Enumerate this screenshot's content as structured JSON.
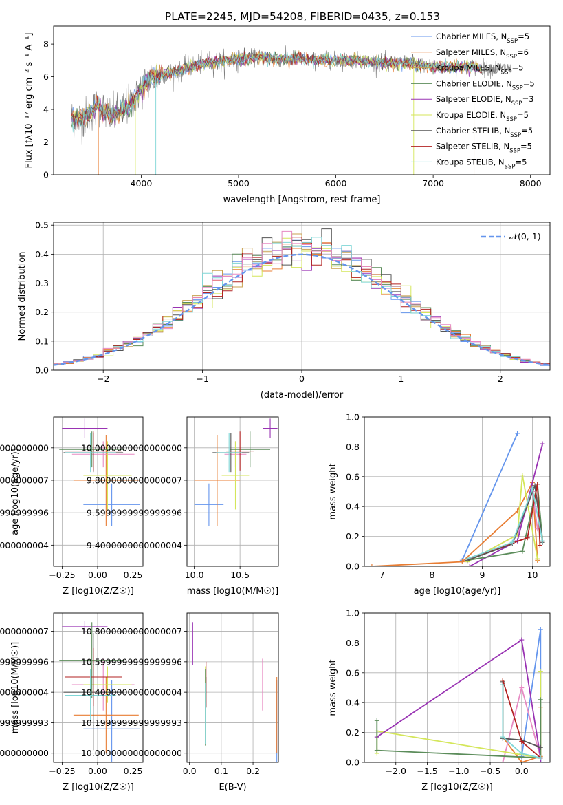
{
  "figure": {
    "title": "PLATE=2245, MJD=54208, FIBERID=0435, z=0.153"
  },
  "colors": {
    "frame": "#000000",
    "grid": "#b0b0b0",
    "observed": "#808080",
    "normal_curve": "#6495ED"
  },
  "chart_data": [
    {
      "id": "spectrum",
      "type": "line",
      "title": "PLATE=2245, MJD=54208, FIBERID=0435, z=0.153",
      "xlabel": "wavelength [Angstrom, rest frame]",
      "ylabel": "Flux [fλ10⁻¹⁷ erg cm⁻² s⁻¹ A⁻¹]",
      "xlim": [
        3100,
        8200
      ],
      "ylim": [
        0,
        9.1
      ],
      "xticks": [
        4000,
        5000,
        6000,
        7000,
        8000
      ],
      "yticks": [
        0,
        2,
        4,
        6,
        8
      ],
      "grid": false,
      "legend_position": "top-right",
      "observed_anchors": {
        "x": [
          3280,
          3400,
          3550,
          3700,
          3800,
          3900,
          4000,
          4100,
          4200,
          4300,
          4400,
          4500,
          4600,
          4700,
          4800,
          4900,
          5000,
          5200,
          5400,
          5600,
          5800,
          6000,
          6200,
          6400,
          6600,
          6800,
          7000,
          7200,
          7400,
          7600,
          7800
        ],
        "y": [
          3.5,
          3.4,
          4.2,
          3.6,
          3.9,
          4.4,
          5.3,
          5.9,
          6.1,
          6.2,
          6.4,
          6.6,
          6.7,
          6.9,
          6.9,
          7.0,
          7.1,
          7.2,
          7.1,
          7.1,
          7.0,
          7.0,
          7.0,
          6.9,
          6.8,
          6.8,
          6.6,
          6.6,
          6.6,
          6.5,
          6.5
        ]
      },
      "series": [
        {
          "name": "Chabrier MILES, N_SSP=5",
          "legend": "Chabrier MILES, N",
          "sub": "SSP",
          "suffix": "=5",
          "color": "#6495ED"
        },
        {
          "name": "Salpeter MILES, N_SSP=6",
          "legend": "Salpeter MILES, N",
          "sub": "SSP",
          "suffix": "=6",
          "color": "#E87D33"
        },
        {
          "name": "Kroupa MILES, N_SSP=5",
          "legend": "Kroupa MILES, N",
          "sub": "SSP",
          "suffix": "=5",
          "color": "#C8A050"
        },
        {
          "name": "Chabrier ELODIE, N_SSP=5",
          "legend": "Chabrier ELODIE, N",
          "sub": "SSP",
          "suffix": "=5",
          "color": "#5B8C5A"
        },
        {
          "name": "Salpeter ELODIE, N_SSP=3",
          "legend": "Salpeter ELODIE, N",
          "sub": "SSP",
          "suffix": "=3",
          "color": "#9933B3"
        },
        {
          "name": "Kroupa ELODIE, N_SSP=5",
          "legend": "Kroupa ELODIE, N",
          "sub": "SSP",
          "suffix": "=5",
          "color": "#D4E65A"
        },
        {
          "name": "Chabrier STELIB, N_SSP=5",
          "legend": "Chabrier STELIB, N",
          "sub": "SSP",
          "suffix": "=5",
          "color": "#555555"
        },
        {
          "name": "Salpeter STELIB, N_SSP=5",
          "legend": "Salpeter STELIB, N",
          "sub": "SSP",
          "suffix": "=5",
          "color": "#B22222"
        },
        {
          "name": "Kroupa STELIB, N_SSP=5",
          "legend": "Kroupa STELIB, N",
          "sub": "SSP",
          "suffix": "=5",
          "color": "#7FD6D6"
        }
      ]
    },
    {
      "id": "residuals",
      "type": "histogram",
      "xlabel": "(data-model)/error",
      "ylabel": "Normed distribution",
      "xlim": [
        -2.5,
        2.5
      ],
      "ylim": [
        0,
        0.51
      ],
      "xticks": [
        -2,
        -1,
        0,
        1,
        2
      ],
      "yticks": [
        0.0,
        0.1,
        0.2,
        0.3,
        0.4,
        0.5
      ],
      "grid": true,
      "legend": "𝒩(0, 1)",
      "legend_position": "top-right",
      "bin_width": 0.1
    },
    {
      "id": "z_age",
      "type": "errorbar",
      "xlabel": "Z [log10(Z/Z☉)]",
      "ylabel": "age  [log10(age/yr)]",
      "xlim": [
        -0.31,
        0.32
      ],
      "ylim": [
        9.27,
        10.19
      ],
      "xticks": [
        -0.25,
        0.0,
        0.25
      ],
      "yticks": [
        9.4,
        9.6,
        9.8,
        10.0
      ],
      "grid": true,
      "points": [
        {
          "x": 0.1,
          "xerr": 0.2,
          "y": 9.65,
          "yerr": 0.13,
          "color": "#6495ED"
        },
        {
          "x": 0.06,
          "xerr": 0.23,
          "y": 9.8,
          "yerr": 0.28,
          "color": "#E87D33"
        },
        {
          "x": 0.04,
          "xerr": 0.22,
          "y": 9.96,
          "yerr": 0.08,
          "color": "#E78AC3"
        },
        {
          "x": 0.07,
          "xerr": 0.17,
          "y": 9.83,
          "yerr": 0.21,
          "color": "#D4E65A"
        },
        {
          "x": -0.09,
          "xerr": 0.16,
          "y": 10.12,
          "yerr": 0.06,
          "color": "#9933B3"
        },
        {
          "x": -0.04,
          "xerr": 0.23,
          "y": 9.99,
          "yerr": 0.11,
          "color": "#5B8C5A"
        },
        {
          "x": -0.03,
          "xerr": 0.21,
          "y": 9.97,
          "yerr": 0.12,
          "color": "#555555"
        },
        {
          "x": -0.03,
          "xerr": 0.2,
          "y": 9.98,
          "yerr": 0.12,
          "color": "#B22222"
        },
        {
          "x": -0.05,
          "xerr": 0.18,
          "y": 9.97,
          "yerr": 0.12,
          "color": "#7FD6D6"
        }
      ]
    },
    {
      "id": "mass_age",
      "type": "errorbar",
      "xlabel": "mass [log10(M/M☉)]",
      "ylabel": "",
      "xlim": [
        9.92,
        10.92
      ],
      "ylim": [
        9.27,
        10.19
      ],
      "xticks": [
        10.0,
        10.5
      ],
      "yticks": [
        9.4,
        9.6,
        9.8,
        10.0
      ],
      "grid": true,
      "points": [
        {
          "x": 10.16,
          "xerr": 0.16,
          "y": 9.65,
          "yerr": 0.13,
          "color": "#6495ED"
        },
        {
          "x": 10.25,
          "xerr": 0.25,
          "y": 9.8,
          "yerr": 0.28,
          "color": "#E87D33"
        },
        {
          "x": 10.45,
          "xerr": 0.12,
          "y": 9.96,
          "yerr": 0.08,
          "color": "#E78AC3"
        },
        {
          "x": 10.45,
          "xerr": 0.15,
          "y": 9.83,
          "yerr": 0.21,
          "color": "#D4E65A"
        },
        {
          "x": 10.83,
          "xerr": 0.08,
          "y": 10.12,
          "yerr": 0.06,
          "color": "#9933B3"
        },
        {
          "x": 10.61,
          "xerr": 0.22,
          "y": 9.99,
          "yerr": 0.11,
          "color": "#5B8C5A"
        },
        {
          "x": 10.4,
          "xerr": 0.2,
          "y": 9.97,
          "yerr": 0.12,
          "color": "#555555"
        },
        {
          "x": 10.5,
          "xerr": 0.15,
          "y": 9.98,
          "yerr": 0.12,
          "color": "#B22222"
        },
        {
          "x": 10.38,
          "xerr": 0.14,
          "y": 9.97,
          "yerr": 0.12,
          "color": "#7FD6D6"
        }
      ]
    },
    {
      "id": "weights_age",
      "type": "line",
      "xlabel": "age  [log10(age/yr)]",
      "ylabel": "mass weight",
      "xlim": [
        6.65,
        10.35
      ],
      "ylim": [
        0,
        1
      ],
      "xticks": [
        7,
        8,
        9,
        10
      ],
      "yticks": [
        0.0,
        0.2,
        0.4,
        0.6,
        0.8,
        1.0
      ],
      "grid": true,
      "series": [
        {
          "color": "#6495ED",
          "x": [
            8.6,
            9.7
          ],
          "y": [
            0.04,
            0.89
          ]
        },
        {
          "color": "#E87D33",
          "x": [
            6.8,
            8.6,
            9.7,
            10.0,
            10.1
          ],
          "y": [
            0.0,
            0.03,
            0.37,
            0.56,
            0.04
          ]
        },
        {
          "color": "#E78AC3",
          "x": [
            8.7,
            9.7,
            10.0,
            10.1
          ],
          "y": [
            0.03,
            0.21,
            0.5,
            0.25
          ]
        },
        {
          "color": "#D4E65A",
          "x": [
            8.7,
            9.7,
            9.8,
            10.1
          ],
          "y": [
            0.03,
            0.21,
            0.61,
            0.05
          ]
        },
        {
          "color": "#9933B3",
          "x": [
            8.75,
            9.7,
            10.2
          ],
          "y": [
            0.0,
            0.17,
            0.82
          ]
        },
        {
          "color": "#5B8C5A",
          "x": [
            8.7,
            9.8,
            10.1,
            10.2
          ],
          "y": [
            0.04,
            0.1,
            0.55,
            0.17
          ]
        },
        {
          "color": "#555555",
          "x": [
            8.7,
            9.6,
            10.05,
            10.2
          ],
          "y": [
            0.04,
            0.15,
            0.54,
            0.16
          ]
        },
        {
          "color": "#B22222",
          "x": [
            8.7,
            9.9,
            10.1,
            10.15
          ],
          "y": [
            0.05,
            0.19,
            0.55,
            0.14
          ]
        },
        {
          "color": "#7FD6D6",
          "x": [
            8.7,
            9.6,
            10.0,
            10.2
          ],
          "y": [
            0.05,
            0.16,
            0.52,
            0.17
          ]
        }
      ]
    },
    {
      "id": "z_mass",
      "type": "errorbar",
      "xlabel": "Z [log10(Z/Z☉)]",
      "ylabel": "mass [log10(M/M☉)]",
      "xlim": [
        -0.31,
        0.32
      ],
      "ylim": [
        9.94,
        10.92
      ],
      "xticks": [
        -0.25,
        0.0,
        0.25
      ],
      "yticks": [
        10.0,
        10.2,
        10.4,
        10.6,
        10.8
      ],
      "grid": true,
      "points": [
        {
          "x": 0.1,
          "xerr": 0.2,
          "y": 10.16,
          "yerr": 0.32,
          "color": "#6495ED"
        },
        {
          "x": 0.06,
          "xerr": 0.23,
          "y": 10.25,
          "yerr": 0.25,
          "color": "#E87D33"
        },
        {
          "x": 0.04,
          "xerr": 0.22,
          "y": 10.45,
          "yerr": 0.17,
          "color": "#E78AC3"
        },
        {
          "x": 0.07,
          "xerr": 0.17,
          "y": 10.45,
          "yerr": 0.12,
          "color": "#D4E65A"
        },
        {
          "x": -0.09,
          "xerr": 0.16,
          "y": 10.83,
          "yerr": 0.04,
          "color": "#9933B3"
        },
        {
          "x": -0.04,
          "xerr": 0.23,
          "y": 10.61,
          "yerr": 0.25,
          "color": "#5B8C5A"
        },
        {
          "x": -0.03,
          "xerr": 0.21,
          "y": 10.4,
          "yerr": 0.38,
          "color": "#555555"
        },
        {
          "x": -0.03,
          "xerr": 0.2,
          "y": 10.5,
          "yerr": 0.19,
          "color": "#B22222"
        },
        {
          "x": -0.05,
          "xerr": 0.18,
          "y": 10.38,
          "yerr": 0.17,
          "color": "#7FD6D6"
        }
      ]
    },
    {
      "id": "ebv_mass",
      "type": "errorbar",
      "xlabel": "E(B-V)",
      "ylabel": "",
      "xlim": [
        -0.008,
        0.28
      ],
      "ylim": [
        9.94,
        10.92
      ],
      "xticks": [
        0.0,
        0.1,
        0.2
      ],
      "yticks": [
        10.0,
        10.2,
        10.4,
        10.6,
        10.8
      ],
      "grid": true,
      "points": [
        {
          "x": 0.275,
          "xerr": 0,
          "y": 10.16,
          "yerr": 0.32,
          "color": "#6495ED"
        },
        {
          "x": 0.275,
          "xerr": 0,
          "y": 10.25,
          "yerr": 0.25,
          "color": "#E87D33"
        },
        {
          "x": 0.23,
          "xerr": 0,
          "y": 10.45,
          "yerr": 0.17,
          "color": "#E78AC3"
        },
        {
          "x": 0.05,
          "xerr": 0,
          "y": 10.45,
          "yerr": 0.12,
          "color": "#D4E65A"
        },
        {
          "x": 0.01,
          "xerr": 0,
          "y": 10.72,
          "yerr": 0.14,
          "color": "#9933B3"
        },
        {
          "x": 0.05,
          "xerr": 0,
          "y": 10.3,
          "yerr": 0.25,
          "color": "#5B8C5A"
        },
        {
          "x": 0.052,
          "xerr": 0,
          "y": 10.4,
          "yerr": 0.1,
          "color": "#555555"
        },
        {
          "x": 0.052,
          "xerr": 0,
          "y": 10.45,
          "yerr": 0.15,
          "color": "#B22222"
        },
        {
          "x": 0.05,
          "xerr": 0,
          "y": 10.26,
          "yerr": 0.2,
          "color": "#7FD6D6"
        }
      ]
    },
    {
      "id": "weights_z",
      "type": "line",
      "xlabel": "Z [log10(Z/Z☉)]",
      "ylabel": "mass weight",
      "xlim": [
        -2.5,
        0.45
      ],
      "ylim": [
        0,
        1
      ],
      "xticks": [
        -2.0,
        -1.5,
        -1.0,
        -0.5,
        0.0
      ],
      "yticks": [
        0.0,
        0.2,
        0.4,
        0.6,
        0.8,
        1.0
      ],
      "grid": true,
      "series": [
        {
          "color": "#6495ED",
          "x": [
            0.0,
            0.3,
            0.3
          ],
          "y": [
            0.04,
            0.89,
            0.0
          ]
        },
        {
          "color": "#E87D33",
          "x": [
            -0.3,
            -0.3,
            0.0,
            0.3,
            0.3
          ],
          "y": [
            0.55,
            0.17,
            0.0,
            0.04,
            0.37
          ]
        },
        {
          "color": "#E78AC3",
          "x": [
            -0.3,
            0.0,
            0.3
          ],
          "y": [
            0.0,
            0.5,
            0.03
          ]
        },
        {
          "color": "#D4E65A",
          "x": [
            -2.3,
            -2.3,
            0.3,
            0.3
          ],
          "y": [
            0.06,
            0.21,
            0.03,
            0.61
          ]
        },
        {
          "color": "#9933B3",
          "x": [
            -2.3,
            0.0,
            0.3,
            0.3
          ],
          "y": [
            0.17,
            0.82,
            0.03,
            0.0
          ]
        },
        {
          "color": "#5B8C5A",
          "x": [
            -2.3,
            -2.3,
            0.3,
            0.3
          ],
          "y": [
            0.28,
            0.08,
            0.03,
            0.42
          ]
        },
        {
          "color": "#555555",
          "x": [
            -0.3,
            -0.3,
            0.0,
            0.3
          ],
          "y": [
            0.54,
            0.16,
            0.15,
            0.1
          ]
        },
        {
          "color": "#B22222",
          "x": [
            -0.3,
            0.0,
            0.3
          ],
          "y": [
            0.55,
            0.14,
            0.03
          ]
        },
        {
          "color": "#7FD6D6",
          "x": [
            -0.3,
            -0.3,
            0.0,
            0.3
          ],
          "y": [
            0.52,
            0.17,
            0.06,
            0.03
          ]
        }
      ]
    }
  ]
}
